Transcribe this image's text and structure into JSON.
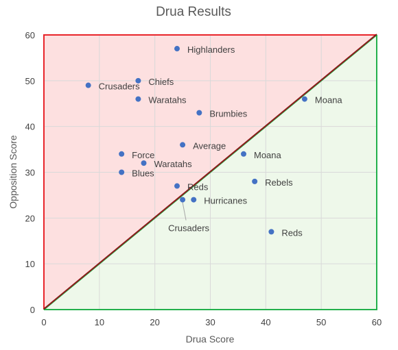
{
  "chart_data": {
    "type": "scatter",
    "title": "Drua Results",
    "xlabel": "Drua Score",
    "ylabel": "Opposition Score",
    "xlim": [
      0,
      60
    ],
    "ylim": [
      0,
      60
    ],
    "xticks": [
      0,
      10,
      20,
      30,
      40,
      50,
      60
    ],
    "yticks": [
      0,
      10,
      20,
      30,
      40,
      50,
      60
    ],
    "grid": true,
    "legend": "none",
    "region_colors": {
      "loss": "#fde0e0",
      "win": "#eef8ea"
    },
    "border_colors": {
      "loss": "#e8242a",
      "win": "#22b04b",
      "diagonal": "#8b1a1a"
    },
    "point_color": "#4472c4",
    "points": [
      {
        "label": "Highlanders",
        "x": 24,
        "y": 57
      },
      {
        "label": "Chiefs",
        "x": 17,
        "y": 50
      },
      {
        "label": "Crusaders",
        "x": 8,
        "y": 49
      },
      {
        "label": "Waratahs",
        "x": 17,
        "y": 46
      },
      {
        "label": "Moana",
        "x": 47,
        "y": 46
      },
      {
        "label": "Brumbies",
        "x": 28,
        "y": 43
      },
      {
        "label": "Average",
        "x": 25,
        "y": 36
      },
      {
        "label": "Moana",
        "x": 36,
        "y": 34
      },
      {
        "label": "Force",
        "x": 14,
        "y": 34
      },
      {
        "label": "Waratahs",
        "x": 18,
        "y": 32
      },
      {
        "label": "Blues",
        "x": 14,
        "y": 30
      },
      {
        "label": "Rebels",
        "x": 38,
        "y": 28
      },
      {
        "label": "Reds",
        "x": 24,
        "y": 27
      },
      {
        "label": "Hurricanes",
        "x": 27,
        "y": 24
      },
      {
        "label": "Crusaders",
        "x": 25,
        "y": 24
      },
      {
        "label": "Reds",
        "x": 41,
        "y": 17
      }
    ]
  }
}
